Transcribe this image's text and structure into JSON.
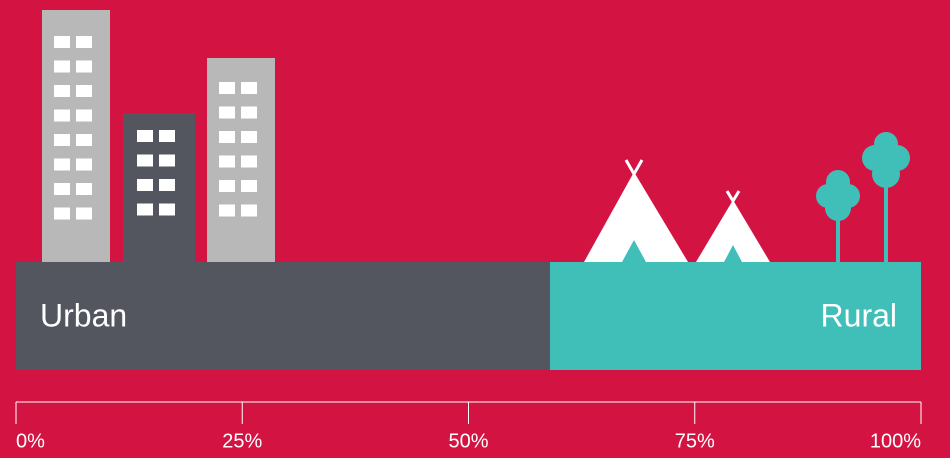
{
  "chart_data": {
    "type": "bar",
    "orientation": "horizontal",
    "stacked": true,
    "series": [
      {
        "name": "Urban",
        "color": "#53565e",
        "values": [
          59
        ]
      },
      {
        "name": "Rural",
        "color": "#40bfb9",
        "values": [
          41
        ]
      }
    ],
    "xlim": [
      0,
      100
    ],
    "xticks": [
      {
        "value": 0,
        "label": "0%"
      },
      {
        "value": 25,
        "label": "25%"
      },
      {
        "value": 50,
        "label": "50%"
      },
      {
        "value": 75,
        "label": "75%"
      },
      {
        "value": 100,
        "label": "100%"
      }
    ]
  }
}
